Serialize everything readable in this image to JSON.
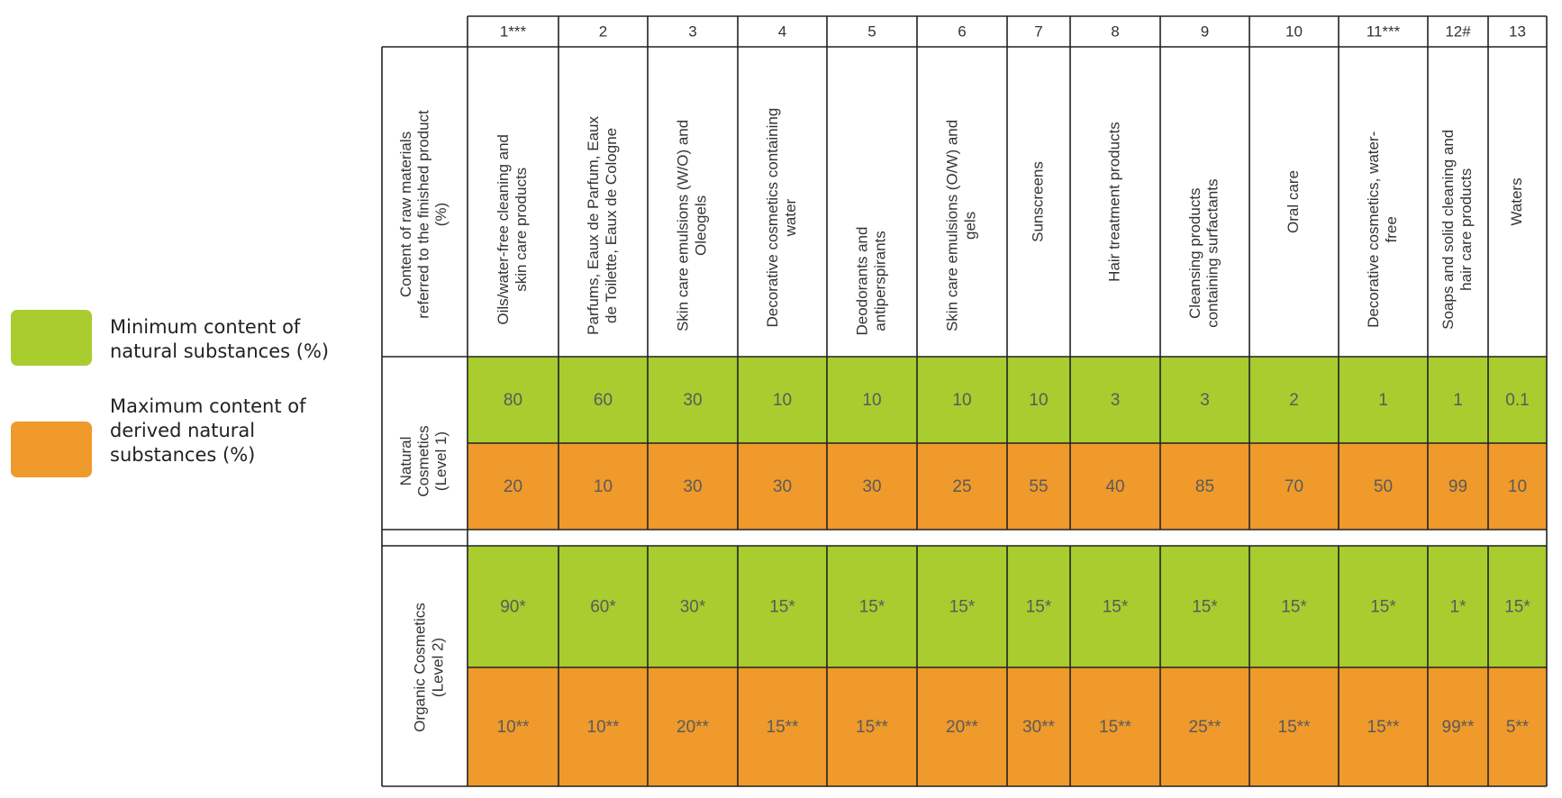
{
  "legend": {
    "natural": {
      "label": "Minimum content of\nnatural substances (%)",
      "color": "#a9cc2f"
    },
    "derived": {
      "label": "Maximum content of\nderived natural\nsubstances (%)",
      "color": "#ef9a2b"
    }
  },
  "table": {
    "header_label": "Content of raw materials referred to the finished product (%)",
    "header_label_lines": [
      "Content of raw materials",
      "referred to the finished product",
      "(%)"
    ],
    "columns": [
      {
        "number": "1***",
        "category": [
          "Oils/water-free cleaning and",
          "skin care products"
        ]
      },
      {
        "number": "2",
        "category": [
          "Parfums, Eaux de Parfum, Eaux",
          "de Toilette, Eaux de Cologne"
        ]
      },
      {
        "number": "3",
        "category": [
          "Skin care emulsions (W/O) and",
          "Oleogels"
        ]
      },
      {
        "number": "4",
        "category": [
          "Decorative cosmetics containing",
          "water"
        ]
      },
      {
        "number": "5",
        "category": [
          "Deodorants and",
          "antiperspirants"
        ]
      },
      {
        "number": "6",
        "category": [
          "Skin care emulsions (O/W) and",
          "gels"
        ]
      },
      {
        "number": "7",
        "category": [
          "Sunscreens"
        ]
      },
      {
        "number": "8",
        "category": [
          "Hair treatment products"
        ]
      },
      {
        "number": "9",
        "category": [
          "Cleansing products",
          "containing surfactants"
        ]
      },
      {
        "number": "10",
        "category": [
          "Oral care"
        ]
      },
      {
        "number": "11***",
        "category": [
          "Decorative cosmetics, water-",
          "free"
        ]
      },
      {
        "number": "12#",
        "category": [
          "Soaps and solid cleaning and",
          "hair care products"
        ]
      },
      {
        "number": "13",
        "category": [
          "Waters"
        ]
      }
    ],
    "level1_label": [
      "Natural",
      "Cosmetics",
      "(Level 1)"
    ],
    "level2_label": [
      "Organic Cosmetics",
      "(Level 2)"
    ]
  },
  "chart_data": {
    "type": "table",
    "columns": [
      "1***",
      "2",
      "3",
      "4",
      "5",
      "6",
      "7",
      "8",
      "9",
      "10",
      "11***",
      "12#",
      "13"
    ],
    "rows": [
      {
        "group": "Natural Cosmetics (Level 1)",
        "measure": "Minimum content of natural substances (%)",
        "values": [
          "80",
          "60",
          "30",
          "10",
          "10",
          "10",
          "10",
          "3",
          "3",
          "2",
          "1",
          "1",
          "0.1"
        ]
      },
      {
        "group": "Natural Cosmetics (Level 1)",
        "measure": "Maximum content of derived natural substances (%)",
        "values": [
          "20",
          "10",
          "30",
          "30",
          "30",
          "25",
          "55",
          "40",
          "85",
          "70",
          "50",
          "99",
          "10"
        ]
      },
      {
        "group": "Organic Cosmetics (Level 2)",
        "measure": "Minimum content of natural substances (%)",
        "values": [
          "90*",
          "60*",
          "30*",
          "15*",
          "15*",
          "15*",
          "15*",
          "15*",
          "15*",
          "15*",
          "15*",
          "1*",
          "15*"
        ]
      },
      {
        "group": "Organic Cosmetics (Level 2)",
        "measure": "Maximum content of derived natural substances (%)",
        "values": [
          "10**",
          "10**",
          "20**",
          "15**",
          "15**",
          "20**",
          "30**",
          "15**",
          "25**",
          "15**",
          "15**",
          "99**",
          "5**"
        ]
      }
    ]
  }
}
